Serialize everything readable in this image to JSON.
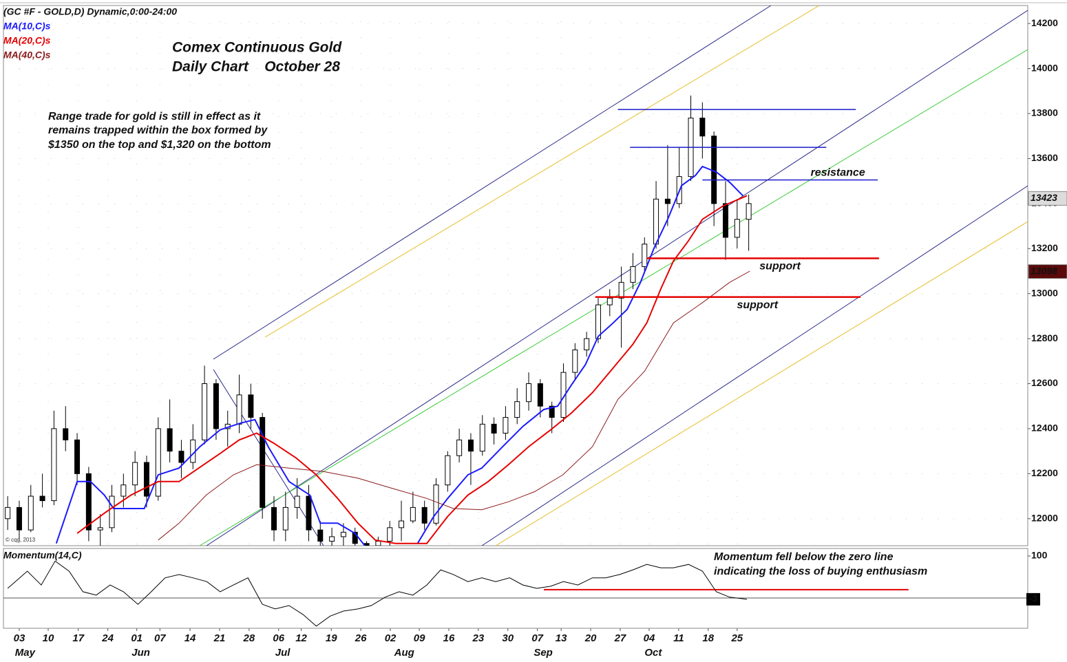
{
  "chart_data": {
    "type": "candlestick",
    "header": "(GC #F - GOLD,D) Dynamic,0:00-24:00",
    "title": [
      "Comex Continuous Gold",
      "Daily Chart    October 28"
    ],
    "annotation": [
      "Range trade for gold is still in effect as it",
      "remains trapped within the box formed by",
      "$1350 on the top and $1,320 on the bottom"
    ],
    "copyright": "© cqg, 2013",
    "xlim": [
      -0.73,
      176.2
    ],
    "xticks": [
      {
        "value": 2,
        "label": "03"
      },
      {
        "value": 7,
        "label": "10"
      },
      {
        "value": 12.2,
        "label": "17"
      },
      {
        "value": 17.3,
        "label": "24"
      },
      {
        "value": 22.3,
        "label": "01"
      },
      {
        "value": 26.3,
        "label": "07"
      },
      {
        "value": 31.5,
        "label": "14"
      },
      {
        "value": 36.6,
        "label": "21"
      },
      {
        "value": 41.7,
        "label": "28"
      },
      {
        "value": 46.8,
        "label": "06"
      },
      {
        "value": 50.7,
        "label": "12"
      },
      {
        "value": 55.9,
        "label": "19"
      },
      {
        "value": 61,
        "label": "26"
      },
      {
        "value": 66.1,
        "label": "02"
      },
      {
        "value": 71.1,
        "label": "09"
      },
      {
        "value": 76.2,
        "label": "16"
      },
      {
        "value": 81.3,
        "label": "23"
      },
      {
        "value": 86.4,
        "label": "30"
      },
      {
        "value": 91.5,
        "label": "07"
      },
      {
        "value": 95.6,
        "label": "13"
      },
      {
        "value": 100.7,
        "label": "20"
      },
      {
        "value": 105.8,
        "label": "27"
      },
      {
        "value": 110.8,
        "label": "04"
      },
      {
        "value": 115.9,
        "label": "11"
      },
      {
        "value": 121,
        "label": "18"
      },
      {
        "value": 126,
        "label": "25"
      }
    ],
    "months": [
      {
        "value": 3,
        "label": "May"
      },
      {
        "value": 23,
        "label": "Jun"
      },
      {
        "value": 47.5,
        "label": "Jul"
      },
      {
        "value": 68.5,
        "label": "Aug"
      },
      {
        "value": 92.5,
        "label": "Sep"
      },
      {
        "value": 111.5,
        "label": "Oct"
      }
    ],
    "ylim": [
      11880,
      14280
    ],
    "yticks": [
      12000,
      12200,
      12400,
      12600,
      12800,
      13000,
      13200,
      13400,
      13600,
      13800,
      14000,
      14200
    ],
    "grid": true,
    "x": [
      0,
      2,
      4,
      6,
      8,
      10,
      12,
      14,
      16,
      18,
      20,
      22,
      24,
      26,
      28,
      30,
      32,
      34,
      36,
      38,
      40,
      42,
      44,
      46,
      48,
      50,
      52,
      54,
      56,
      58,
      60,
      62,
      64,
      66,
      68,
      70,
      72,
      74,
      76,
      78,
      80,
      82,
      84,
      86,
      88,
      90,
      92,
      94,
      96,
      98,
      100,
      102,
      104,
      106,
      108,
      110,
      112,
      114,
      116,
      118,
      120,
      122,
      124,
      126,
      128
    ],
    "ohlc": [
      [
        12000,
        12100,
        11950,
        12050
      ],
      [
        12050,
        12080,
        11900,
        11950
      ],
      [
        11950,
        12150,
        11940,
        12100
      ],
      [
        12100,
        12200,
        12050,
        12080
      ],
      [
        12080,
        12480,
        12060,
        12400
      ],
      [
        12400,
        12500,
        12300,
        12350
      ],
      [
        12350,
        12380,
        12150,
        12200
      ],
      [
        12200,
        12230,
        11900,
        11950
      ],
      [
        11950,
        12020,
        11880,
        11960
      ],
      [
        11960,
        12150,
        11940,
        12100
      ],
      [
        12100,
        12200,
        12050,
        12150
      ],
      [
        12150,
        12300,
        12100,
        12250
      ],
      [
        12250,
        12280,
        12050,
        12100
      ],
      [
        12100,
        12450,
        12080,
        12400
      ],
      [
        12400,
        12530,
        12250,
        12300
      ],
      [
        12300,
        12350,
        12180,
        12250
      ],
      [
        12250,
        12420,
        12220,
        12350
      ],
      [
        12350,
        12680,
        12330,
        12600
      ],
      [
        12600,
        12620,
        12350,
        12400
      ],
      [
        12400,
        12480,
        12320,
        12420
      ],
      [
        12420,
        12640,
        12380,
        12550
      ],
      [
        12550,
        12600,
        12400,
        12450
      ],
      [
        12450,
        12470,
        12000,
        12050
      ],
      [
        12050,
        12100,
        11900,
        11950
      ],
      [
        11950,
        12120,
        11900,
        12050
      ],
      [
        12050,
        12180,
        12000,
        12100
      ],
      [
        12100,
        12150,
        11900,
        11950
      ],
      [
        11950,
        11990,
        11860,
        11900
      ],
      [
        11900,
        11960,
        11860,
        11920
      ],
      [
        11920,
        11980,
        11880,
        11940
      ],
      [
        11940,
        11960,
        11860,
        11890
      ],
      [
        11890,
        11900,
        11860,
        11880
      ],
      [
        11880,
        11920,
        11860,
        11900
      ],
      [
        11900,
        11990,
        11880,
        11960
      ],
      [
        11960,
        12080,
        11900,
        11990
      ],
      [
        11990,
        12120,
        11980,
        12050
      ],
      [
        12050,
        12080,
        11950,
        11980
      ],
      [
        11980,
        12180,
        11970,
        12150
      ],
      [
        12150,
        12300,
        12120,
        12280
      ],
      [
        12280,
        12400,
        12250,
        12350
      ],
      [
        12350,
        12380,
        12150,
        12300
      ],
      [
        12300,
        12460,
        12280,
        12420
      ],
      [
        12420,
        12450,
        12330,
        12380
      ],
      [
        12380,
        12500,
        12350,
        12450
      ],
      [
        12450,
        12580,
        12420,
        12520
      ],
      [
        12520,
        12650,
        12480,
        12600
      ],
      [
        12600,
        12620,
        12450,
        12500
      ],
      [
        12500,
        12520,
        12380,
        12450
      ],
      [
        12450,
        12690,
        12430,
        12650
      ],
      [
        12650,
        12780,
        12620,
        12750
      ],
      [
        12750,
        12830,
        12720,
        12800
      ],
      [
        12800,
        12980,
        12780,
        12950
      ],
      [
        12950,
        13020,
        12900,
        12980
      ],
      [
        12980,
        13120,
        12760,
        13050
      ],
      [
        13050,
        13180,
        13020,
        13120
      ],
      [
        13120,
        13250,
        13100,
        13220
      ],
      [
        13220,
        13500,
        13200,
        13420
      ],
      [
        13420,
        13660,
        13300,
        13400
      ],
      [
        13400,
        13650,
        13380,
        13520
      ],
      [
        13520,
        13880,
        13500,
        13780
      ],
      [
        13780,
        13850,
        13600,
        13700
      ],
      [
        13700,
        13720,
        13300,
        13400
      ],
      [
        13400,
        13500,
        13150,
        13250
      ],
      [
        13250,
        13420,
        13200,
        13330
      ],
      [
        13330,
        13440,
        13190,
        13400
      ]
    ],
    "series": [
      {
        "name": "MA(10,C)s",
        "color": "#1a1aff",
        "x": [
          8.4,
          12,
          14.3,
          16.7,
          18.3,
          21.3,
          23.6,
          26,
          29.6,
          33.2,
          36.7,
          40.3,
          42.7,
          45,
          48.6,
          52.2,
          54,
          57,
          60,
          61.7,
          66,
          70.8,
          73.6,
          76,
          79.5,
          81.9,
          85.5,
          89,
          92.6,
          95,
          97.4,
          99.8,
          102,
          104.6,
          107,
          109.3,
          111.7,
          114,
          116.4,
          118.8,
          120,
          122.4,
          124.7,
          127
        ],
        "values": [
          11890,
          12165,
          12165,
          12105,
          12045,
          12045,
          12045,
          12195,
          12225,
          12320,
          12395,
          12425,
          12440,
          12320,
          12165,
          12105,
          11980,
          11980,
          11935,
          11880,
          null,
          11890,
          12010,
          12090,
          12195,
          12225,
          12320,
          12410,
          12485,
          12500,
          12595,
          12685,
          12810,
          12870,
          12930,
          13050,
          13205,
          13330,
          13480,
          13525,
          13565,
          13540,
          13495,
          13435
        ]
      },
      {
        "name": "MA(20,C)s",
        "color": "#e60000",
        "x": [
          12,
          17,
          21.3,
          26,
          29.6,
          33,
          36.7,
          40,
          43,
          46,
          49.8,
          53.3,
          57,
          60.5,
          63.5,
          67,
          72.4,
          76,
          79.5,
          83,
          86.5,
          90,
          93.8,
          97.4,
          101,
          104.6,
          108,
          110.4,
          112.8,
          115,
          117.6,
          120,
          123.6,
          127.7
        ],
        "values": [
          11935,
          12030,
          12105,
          12165,
          12165,
          12225,
          12290,
          12350,
          12380,
          12335,
          12270,
          12195,
          12090,
          11980,
          11905,
          11890,
          11890,
          12010,
          12105,
          12165,
          12240,
          12320,
          12395,
          12470,
          12560,
          12670,
          12775,
          12870,
          13020,
          13145,
          13235,
          13330,
          13390,
          13435
        ]
      },
      {
        "name": "MA(40,C)s",
        "color": "#8b1a1a",
        "x": [
          26,
          29.6,
          34.3,
          39,
          43,
          48.6,
          54.5,
          60.5,
          66.4,
          72.4,
          77,
          81.9,
          86.5,
          91,
          95.9,
          101,
          105.4,
          110,
          115,
          120,
          124.7,
          128.2
        ],
        "values": [
          11905,
          11980,
          12105,
          12195,
          12240,
          12225,
          12210,
          12180,
          12135,
          12090,
          12045,
          12040,
          12075,
          12120,
          12195,
          12320,
          12530,
          12655,
          12870,
          12960,
          13050,
          13100
        ]
      }
    ],
    "levels": [
      {
        "value": 13818,
        "x": [
          105.4,
          146.5
        ],
        "color": "#1a1acc"
      },
      {
        "value": 13650,
        "x": [
          107.5,
          141.4
        ],
        "color": "#1a1acc"
      },
      {
        "value": 13505,
        "x": [
          120,
          150.3
        ],
        "color": "#1a1acc",
        "label": "resistance",
        "label_x": 143.4
      },
      {
        "value": 13157,
        "x": [
          110.4,
          150.5
        ],
        "color": "#e60000",
        "label": "support",
        "label_x": 133.4
      },
      {
        "value": 12985,
        "x": [
          101.5,
          147.3
        ],
        "color": "#e60000",
        "label": "support",
        "label_x": 129.5
      }
    ],
    "price_tags": [
      {
        "value": 13423,
        "color": "#dcdcdc"
      },
      {
        "value": 13098,
        "color": "#5a0a0a"
      }
    ],
    "momentum": {
      "type": "line",
      "label": "Momentum(14,C)",
      "color": "#000000",
      "ylim": [
        -72,
        118
      ],
      "yticks": [
        100
      ],
      "baseline": 0,
      "tag": -3,
      "annotation": [
        "Momentum fell below the zero line",
        "indicating the loss of buying enthusiasm"
      ],
      "level": {
        "value": 20,
        "x": [
          92.6,
          155.6
        ],
        "color": "#e60000"
      },
      "x": [
        0,
        3.4,
        5.8,
        8.2,
        10.6,
        13,
        15.3,
        17.7,
        20,
        22.5,
        24.8,
        27.2,
        29.6,
        32,
        34.4,
        36.7,
        39,
        41.5,
        44,
        46.2,
        48.6,
        51,
        53.3,
        55.7,
        58,
        60.5,
        62.8,
        65.2,
        67.6,
        70,
        72.4,
        74.8,
        77,
        79.5,
        81.9,
        84.3,
        86.7,
        89,
        91.4,
        93.8,
        96,
        98.5,
        101,
        103.3,
        105.7,
        108,
        110.4,
        112.8,
        115,
        117.6,
        120,
        122.4,
        124.7,
        127.7
      ],
      "values": [
        23,
        64,
        31,
        88,
        64,
        15,
        7,
        31,
        15,
        -15,
        15,
        48,
        56,
        48,
        39,
        15,
        31,
        48,
        -15,
        -26,
        -18,
        -39,
        -67,
        -43,
        -31,
        -26,
        -18,
        2,
        15,
        7,
        31,
        67,
        56,
        39,
        48,
        39,
        48,
        31,
        23,
        28,
        39,
        31,
        48,
        48,
        56,
        67,
        80,
        72,
        72,
        80,
        64,
        15,
        2,
        -3
      ]
    }
  }
}
